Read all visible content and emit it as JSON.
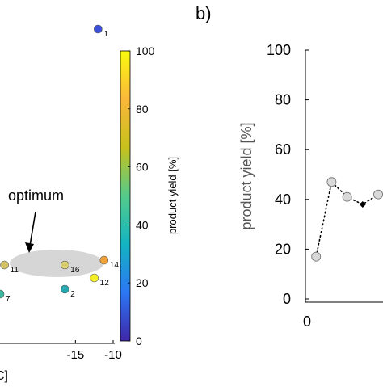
{
  "panel_label": "b)",
  "annotation": "optimum",
  "colorbar": {
    "label": "product yield [%]",
    "ticks": [
      "0",
      "20",
      "40",
      "60",
      "80",
      "100"
    ],
    "tick_values": [
      0,
      20,
      40,
      60,
      80,
      100
    ],
    "range": [
      0,
      100
    ],
    "colors": [
      "#3e26a8",
      "#2c77f5",
      "#13b3c2",
      "#54cb8b",
      "#c7c11c",
      "#fbb73a",
      "#f9fb0e"
    ]
  },
  "chart_data": [
    {
      "type": "scatter",
      "title": "",
      "xlabel": "C]",
      "ylabel": "",
      "xlim": [
        -25,
        -10
      ],
      "x_ticks": [
        "-15",
        "-10"
      ],
      "x_tick_values": [
        -15,
        -10
      ],
      "ylim": [
        0,
        10
      ],
      "grid": false,
      "color_axis": "product yield [%]",
      "highlight": {
        "label": "optimum",
        "center": [
          -17.5,
          2.35
        ],
        "shape": "ellipse"
      },
      "points": [
        {
          "label": "1",
          "x": -12.0,
          "y": 9.6,
          "yield": 8,
          "color": "#3b4fd8"
        },
        {
          "label": "2",
          "x": -16.4,
          "y": 1.55,
          "yield": 45,
          "color": "#26a8ae"
        },
        {
          "label": "7",
          "x": -25.0,
          "y": 1.4,
          "yield": 52,
          "color": "#3cb8a0"
        },
        {
          "label": "11",
          "x": -24.4,
          "y": 2.3,
          "yield": 80,
          "color": "#d2c264"
        },
        {
          "label": "12",
          "x": -12.5,
          "y": 1.9,
          "yield": 98,
          "color": "#f4ee22"
        },
        {
          "label": "14",
          "x": -11.2,
          "y": 2.45,
          "yield": 82,
          "color": "#f0a138"
        },
        {
          "label": "16",
          "x": -16.4,
          "y": 2.3,
          "yield": 78,
          "color": "#d8cd6e"
        }
      ]
    },
    {
      "type": "line",
      "title": "",
      "xlabel": "",
      "ylabel": "product yield [%]",
      "ylim": [
        0,
        100
      ],
      "y_ticks": [
        "0",
        "20",
        "40",
        "60",
        "80",
        "100"
      ],
      "y_tick_values": [
        0,
        20,
        40,
        60,
        80,
        100
      ],
      "x_ticks": [
        "0"
      ],
      "x_tick_values": [
        0
      ],
      "xlim": [
        0,
        5
      ],
      "grid": false,
      "series": [
        {
          "line_style": "dotted",
          "x": [
            1,
            2,
            3,
            4,
            5
          ],
          "values": [
            17,
            47,
            41,
            38,
            42
          ],
          "markers": [
            "circle",
            "circle",
            "circle",
            "diamond",
            "circle"
          ]
        }
      ]
    }
  ]
}
